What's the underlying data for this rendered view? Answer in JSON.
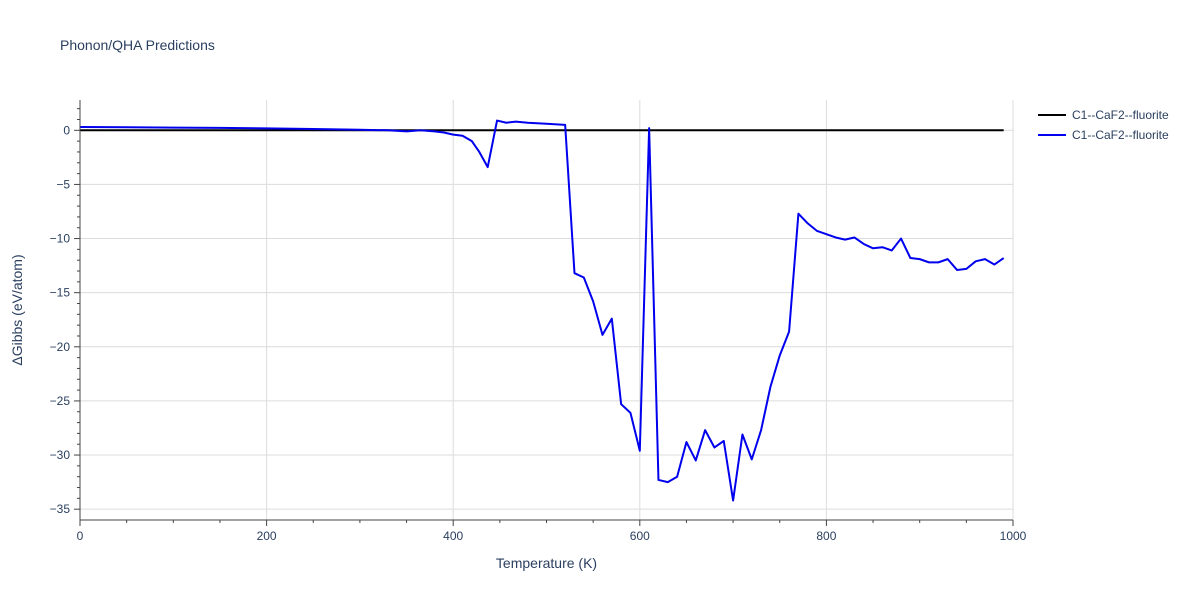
{
  "chart_data": {
    "type": "line",
    "title": "Phonon/QHA Predictions",
    "xlabel": "Temperature (K)",
    "ylabel": "ΔGibbs (eV/atom)",
    "xlim": [
      0,
      1000
    ],
    "ylim": [
      -36,
      2.8
    ],
    "x_ticks": [
      0,
      200,
      400,
      600,
      800,
      1000
    ],
    "y_ticks": [
      0,
      -5,
      -10,
      -15,
      -20,
      -25,
      -30,
      -35
    ],
    "x_tick_labels": [
      "0",
      "200",
      "400",
      "600",
      "800",
      "1000"
    ],
    "y_tick_labels": [
      "0",
      "−5",
      "−10",
      "−15",
      "−20",
      "−25",
      "−30",
      "−35"
    ],
    "grid": true,
    "legend_position": "top-right",
    "series": [
      {
        "name": "C1--CaF2--fluorite",
        "color": "#000000",
        "x": [
          0,
          990
        ],
        "y": [
          0,
          0
        ]
      },
      {
        "name": "C1--CaF2--fluorite",
        "color": "#0000ee",
        "x": [
          0,
          50,
          100,
          150,
          200,
          250,
          300,
          330,
          350,
          365,
          380,
          390,
          400,
          410,
          420,
          428,
          437,
          447,
          457,
          467,
          480,
          500,
          520,
          530,
          540,
          550,
          560,
          570,
          580,
          590,
          600,
          610,
          620,
          630,
          640,
          650,
          660,
          670,
          680,
          690,
          700,
          710,
          720,
          730,
          740,
          750,
          760,
          770,
          780,
          790,
          800,
          810,
          820,
          830,
          840,
          850,
          860,
          870,
          880,
          890,
          900,
          910,
          920,
          930,
          940,
          950,
          960,
          970,
          980,
          990
        ],
        "y": [
          0.3,
          0.28,
          0.25,
          0.22,
          0.18,
          0.12,
          0.05,
          0.0,
          -0.1,
          0.0,
          -0.1,
          -0.2,
          -0.4,
          -0.5,
          -1.0,
          -2.0,
          -3.4,
          0.9,
          0.7,
          0.8,
          0.7,
          0.6,
          0.5,
          -13.2,
          -13.6,
          -15.8,
          -18.9,
          -17.4,
          -25.3,
          -26.1,
          -29.6,
          0.2,
          -32.3,
          -32.5,
          -32.0,
          -28.8,
          -30.5,
          -27.7,
          -29.3,
          -28.7,
          -34.2,
          -28.1,
          -30.4,
          -27.7,
          -23.7,
          -20.8,
          -18.6,
          -7.7,
          -8.6,
          -9.3,
          -9.6,
          -9.9,
          -10.1,
          -9.9,
          -10.5,
          -10.9,
          -10.8,
          -11.1,
          -10.0,
          -11.8,
          -11.9,
          -12.2,
          -12.2,
          -11.9,
          -12.9,
          -12.8,
          -12.1,
          -11.9,
          -12.4,
          -11.8
        ]
      }
    ]
  }
}
